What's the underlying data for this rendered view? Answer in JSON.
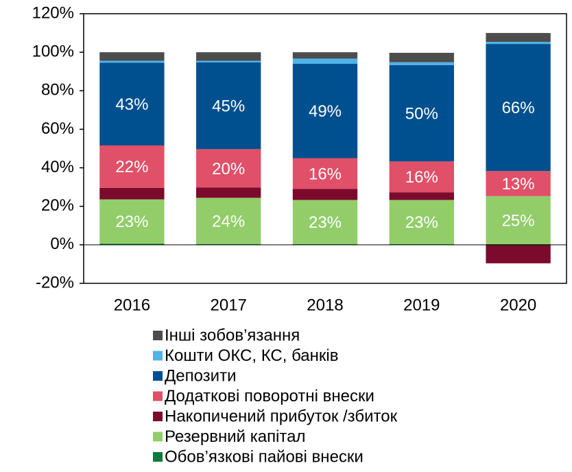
{
  "chart_data": {
    "type": "stacked_bar",
    "categories": [
      "2016",
      "2017",
      "2018",
      "2019",
      "2020"
    ],
    "series": [
      {
        "name": "Обов’язкові пайові внески",
        "color": "#0a7a3c",
        "values": [
          0.6,
          0.4,
          0.3,
          0.3,
          0.3
        ]
      },
      {
        "name": "Резервний капітал",
        "color": "#92cd6a",
        "values": [
          23,
          24,
          23,
          23,
          25
        ],
        "value_labels": [
          "23%",
          "24%",
          "23%",
          "23%",
          "25%"
        ]
      },
      {
        "name": "Накопичений прибуток /збиток",
        "color": "#7b0a2d",
        "values": [
          6,
          5.3,
          5.7,
          4,
          -9.6
        ]
      },
      {
        "name": "Додаткові поворотні внески",
        "color": "#e05068",
        "values": [
          22,
          20,
          16,
          16,
          13
        ],
        "value_labels": [
          "22%",
          "20%",
          "16%",
          "16%",
          "13%"
        ]
      },
      {
        "name": "Депозити",
        "color": "#00508f",
        "values": [
          43,
          45,
          49,
          50,
          66
        ],
        "value_labels": [
          "43%",
          "45%",
          "49%",
          "50%",
          "66%"
        ]
      },
      {
        "name": "Кошти ОКС, КС, банків",
        "color": "#4fb3e8",
        "values": [
          1,
          0.9,
          2.7,
          1.5,
          1.1
        ]
      },
      {
        "name": "Інші зобов’язання",
        "color": "#4d4d4d",
        "values": [
          4.4,
          4.4,
          3.3,
          4.9,
          4.6
        ]
      }
    ],
    "ylim": [
      -20,
      120
    ],
    "yticks": [
      {
        "value": -20,
        "label": "-20%"
      },
      {
        "value": 0,
        "label": "0%"
      },
      {
        "value": 20,
        "label": "20%"
      },
      {
        "value": 40,
        "label": "40%"
      },
      {
        "value": 60,
        "label": "60%"
      },
      {
        "value": 80,
        "label": "80%"
      },
      {
        "value": 100,
        "label": "100%"
      },
      {
        "value": 120,
        "label": "120%"
      }
    ],
    "grid": false,
    "legend": "bottom"
  }
}
